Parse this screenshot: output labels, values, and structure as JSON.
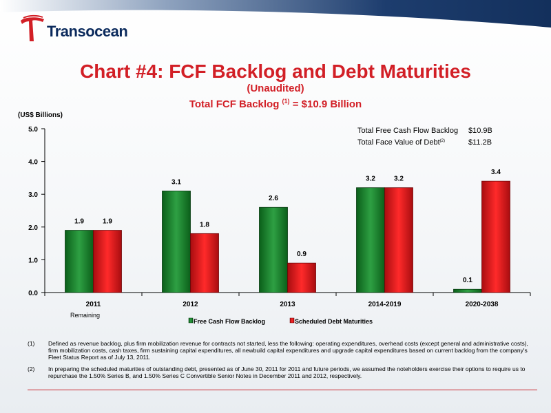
{
  "header": {
    "company": "Transocean"
  },
  "title": {
    "main": "Chart #4: FCF Backlog and Debt Maturities",
    "line2": "(Unaudited)",
    "line3_prefix": "Total FCF Backlog ",
    "line3_sup": "(1)",
    "line3_suffix": " = $10.9 Billion"
  },
  "colors": {
    "fcf": "#1a8a2c",
    "debt": "#e3161b",
    "title": "#d21f26",
    "banner": "#1d3d6e"
  },
  "annotation": {
    "rows": [
      {
        "label": "Total Free Cash Flow Backlog",
        "sup": "",
        "value": "$10.9B"
      },
      {
        "label": "Total Face Value of Debt",
        "sup": "(2)",
        "value": "$11.2B"
      }
    ]
  },
  "chart_data": {
    "type": "bar",
    "unit_label": "(US$ Billions)",
    "categories": [
      "2011",
      "2012",
      "2013",
      "2014-2019",
      "2020-2038"
    ],
    "category_sublabels": [
      "Remaining",
      "",
      "",
      "",
      ""
    ],
    "series": [
      {
        "name": "Free Cash Flow Backlog",
        "values": [
          1.9,
          3.1,
          2.6,
          3.2,
          0.1
        ],
        "labels": [
          "1.9",
          "3.1",
          "2.6",
          "3.2",
          "0.1"
        ]
      },
      {
        "name": "Scheduled Debt Maturities",
        "values": [
          1.9,
          1.8,
          0.9,
          3.2,
          3.4
        ],
        "labels": [
          "1.9",
          "1.8",
          "0.9",
          "3.2",
          "3.4"
        ]
      }
    ],
    "ylim": [
      0,
      5
    ],
    "yticks": [
      "0.0",
      "1.0",
      "2.0",
      "3.0",
      "4.0",
      "5.0"
    ],
    "legend_position": "bottom",
    "grid": false
  },
  "footnotes": [
    {
      "num": "(1)",
      "text": "Defined as revenue backlog, plus firm mobilization revenue for contracts not started, less the following:  operating expenditures, overhead costs (except general and administrative costs), firm mobilization costs, cash taxes, firm sustaining capital expenditures, all newbuild capital expenditures and upgrade capital expenditures based on current backlog from the company's Fleet Status Report as of July 13, 2011."
    },
    {
      "num": "(2)",
      "text": "In preparing the scheduled maturities of outstanding debt, presented as of June 30, 2011 for 2011 and future periods, we assumed the noteholders exercise their options to require us to repurchase the 1.50% Series B, and 1.50% Series C Convertible Senior Notes in December 2011 and 2012, respectively."
    }
  ]
}
